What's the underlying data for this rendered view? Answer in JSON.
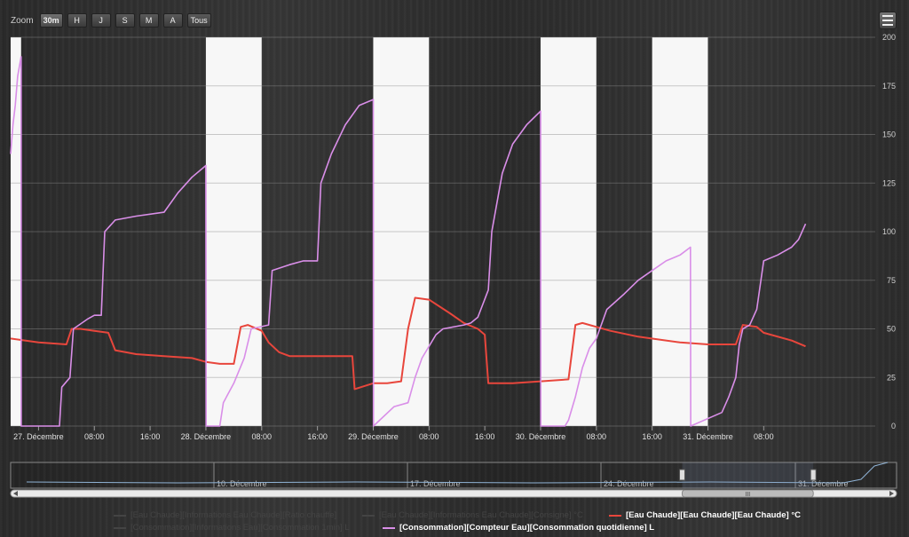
{
  "zoom": {
    "label": "Zoom",
    "buttons": [
      "30m",
      "H",
      "J",
      "S",
      "M",
      "A",
      "Tous"
    ],
    "active": "30m"
  },
  "menu_icon": "hamburger-menu-icon",
  "chart_data": {
    "type": "line",
    "title": "",
    "xlabel": "",
    "ylabel": "",
    "x_axis": {
      "type": "datetime",
      "range": [
        "2023-12-26T20:00",
        "2024-01-01T00:00"
      ],
      "ticks": [
        {
          "x": "2023-12-27T00:00",
          "label": "27. Décembre"
        },
        {
          "x": "2023-12-27T08:00",
          "label": "08:00"
        },
        {
          "x": "2023-12-27T16:00",
          "label": "16:00"
        },
        {
          "x": "2023-12-28T00:00",
          "label": "28. Décembre"
        },
        {
          "x": "2023-12-28T08:00",
          "label": "08:00"
        },
        {
          "x": "2023-12-28T16:00",
          "label": "16:00"
        },
        {
          "x": "2023-12-29T00:00",
          "label": "29. Décembre"
        },
        {
          "x": "2023-12-29T08:00",
          "label": "08:00"
        },
        {
          "x": "2023-12-29T16:00",
          "label": "16:00"
        },
        {
          "x": "2023-12-30T00:00",
          "label": "30. Décembre"
        },
        {
          "x": "2023-12-30T08:00",
          "label": "08:00"
        },
        {
          "x": "2023-12-30T16:00",
          "label": "16:00"
        },
        {
          "x": "2023-12-31T00:00",
          "label": "31. Décembre"
        },
        {
          "x": "2023-12-31T08:00",
          "label": "08:00"
        }
      ]
    },
    "y_axis": {
      "range": [
        0,
        200
      ],
      "ticks": [
        0,
        25,
        50,
        75,
        100,
        125,
        150,
        175,
        200
      ],
      "position": "right",
      "grid": true
    },
    "bands": [
      {
        "from": "2023-12-26T20:00",
        "to": "2023-12-26T21:30",
        "color": "#f7f7f7"
      },
      {
        "from": "2023-12-28T00:00",
        "to": "2023-12-28T08:00",
        "color": "#f7f7f7"
      },
      {
        "from": "2023-12-29T00:00",
        "to": "2023-12-29T08:00",
        "color": "#f7f7f7"
      },
      {
        "from": "2023-12-30T00:00",
        "to": "2023-12-30T08:00",
        "color": "#f7f7f7"
      },
      {
        "from": "2023-12-30T16:00",
        "to": "2023-12-31T00:00",
        "color": "#f7f7f7"
      }
    ],
    "series": [
      {
        "name": "[Eau Chaude][Eau Chaude][Eau Chaude] °C",
        "color": "#e8463c",
        "points": [
          [
            "2023-12-26T20:00",
            45
          ],
          [
            "2023-12-27T00:00",
            43
          ],
          [
            "2023-12-27T04:00",
            42
          ],
          [
            "2023-12-27T04:45",
            50
          ],
          [
            "2023-12-27T06:00",
            50
          ],
          [
            "2023-12-27T08:00",
            49
          ],
          [
            "2023-12-27T10:00",
            48
          ],
          [
            "2023-12-27T11:00",
            39
          ],
          [
            "2023-12-27T14:00",
            37
          ],
          [
            "2023-12-27T18:00",
            36
          ],
          [
            "2023-12-27T22:00",
            35
          ],
          [
            "2023-12-28T00:00",
            33
          ],
          [
            "2023-12-28T02:00",
            32
          ],
          [
            "2023-12-28T04:00",
            32
          ],
          [
            "2023-12-28T05:00",
            51
          ],
          [
            "2023-12-28T06:00",
            52
          ],
          [
            "2023-12-28T08:00",
            49
          ],
          [
            "2023-12-28T09:00",
            43
          ],
          [
            "2023-12-28T10:30",
            38
          ],
          [
            "2023-12-28T12:00",
            36
          ],
          [
            "2023-12-28T16:00",
            36
          ],
          [
            "2023-12-28T21:00",
            36
          ],
          [
            "2023-12-28T21:20",
            19
          ],
          [
            "2023-12-29T00:00",
            22
          ],
          [
            "2023-12-29T02:00",
            22
          ],
          [
            "2023-12-29T04:00",
            23
          ],
          [
            "2023-12-29T05:00",
            50
          ],
          [
            "2023-12-29T06:00",
            66
          ],
          [
            "2023-12-29T08:00",
            65
          ],
          [
            "2023-12-29T11:00",
            58
          ],
          [
            "2023-12-29T13:00",
            53
          ],
          [
            "2023-12-29T15:00",
            50
          ],
          [
            "2023-12-29T16:00",
            47
          ],
          [
            "2023-12-29T16:30",
            22
          ],
          [
            "2023-12-29T20:00",
            22
          ],
          [
            "2023-12-30T00:00",
            23
          ],
          [
            "2023-12-30T04:00",
            24
          ],
          [
            "2023-12-30T05:00",
            52
          ],
          [
            "2023-12-30T06:00",
            53
          ],
          [
            "2023-12-30T10:00",
            49
          ],
          [
            "2023-12-30T14:00",
            46
          ],
          [
            "2023-12-30T20:00",
            43
          ],
          [
            "2023-12-31T00:00",
            42
          ],
          [
            "2023-12-31T04:00",
            42
          ],
          [
            "2023-12-31T05:00",
            52
          ],
          [
            "2023-12-31T07:00",
            51
          ],
          [
            "2023-12-31T08:00",
            48
          ],
          [
            "2023-12-31T12:00",
            44
          ],
          [
            "2023-12-31T14:00",
            41
          ]
        ]
      },
      {
        "name": "[Consommation][Compteur Eau][Consommation quotidienne] L",
        "color": "#d98ee8",
        "color_in_band": "#f3a2f7",
        "points": [
          [
            "2023-12-26T20:00",
            140
          ],
          [
            "2023-12-26T20:20",
            155
          ],
          [
            "2023-12-26T20:40",
            165
          ],
          [
            "2023-12-26T21:00",
            180
          ],
          [
            "2023-12-26T21:30",
            190
          ],
          [
            "2023-12-26T21:31",
            0
          ],
          [
            "2023-12-27T03:00",
            0
          ],
          [
            "2023-12-27T03:20",
            20
          ],
          [
            "2023-12-27T04:30",
            25
          ],
          [
            "2023-12-27T05:00",
            50
          ],
          [
            "2023-12-27T07:00",
            55
          ],
          [
            "2023-12-27T08:00",
            57
          ],
          [
            "2023-12-27T09:00",
            57
          ],
          [
            "2023-12-27T09:30",
            100
          ],
          [
            "2023-12-27T11:00",
            106
          ],
          [
            "2023-12-27T14:00",
            108
          ],
          [
            "2023-12-27T18:00",
            110
          ],
          [
            "2023-12-27T20:00",
            120
          ],
          [
            "2023-12-27T22:00",
            128
          ],
          [
            "2023-12-28T00:00",
            134
          ],
          [
            "2023-12-28T00:02",
            0
          ],
          [
            "2023-12-28T02:00",
            0
          ],
          [
            "2023-12-28T02:30",
            12
          ],
          [
            "2023-12-28T04:00",
            22
          ],
          [
            "2023-12-28T05:30",
            35
          ],
          [
            "2023-12-28T06:30",
            50
          ],
          [
            "2023-12-28T09:00",
            52
          ],
          [
            "2023-12-28T09:30",
            80
          ],
          [
            "2023-12-28T12:00",
            83
          ],
          [
            "2023-12-28T14:00",
            85
          ],
          [
            "2023-12-28T16:00",
            85
          ],
          [
            "2023-12-28T16:30",
            125
          ],
          [
            "2023-12-28T18:00",
            140
          ],
          [
            "2023-12-28T20:00",
            155
          ],
          [
            "2023-12-28T22:00",
            165
          ],
          [
            "2023-12-29T00:00",
            168
          ],
          [
            "2023-12-29T00:02",
            0
          ],
          [
            "2023-12-29T03:00",
            10
          ],
          [
            "2023-12-29T05:00",
            12
          ],
          [
            "2023-12-29T06:00",
            25
          ],
          [
            "2023-12-29T07:00",
            35
          ],
          [
            "2023-12-29T09:00",
            47
          ],
          [
            "2023-12-29T10:00",
            50
          ],
          [
            "2023-12-29T13:00",
            52
          ],
          [
            "2023-12-29T14:00",
            53
          ],
          [
            "2023-12-29T15:00",
            56
          ],
          [
            "2023-12-29T16:30",
            70
          ],
          [
            "2023-12-29T17:00",
            100
          ],
          [
            "2023-12-29T18:30",
            130
          ],
          [
            "2023-12-29T20:00",
            145
          ],
          [
            "2023-12-29T22:00",
            155
          ],
          [
            "2023-12-30T00:00",
            162
          ],
          [
            "2023-12-30T00:02",
            0
          ],
          [
            "2023-12-30T03:00",
            0
          ],
          [
            "2023-12-30T03:30",
            0
          ],
          [
            "2023-12-30T04:00",
            3
          ],
          [
            "2023-12-30T05:00",
            15
          ],
          [
            "2023-12-30T06:00",
            30
          ],
          [
            "2023-12-30T07:00",
            40
          ],
          [
            "2023-12-30T08:00",
            45
          ],
          [
            "2023-12-30T09:30",
            60
          ],
          [
            "2023-12-30T12:00",
            68
          ],
          [
            "2023-12-30T14:00",
            75
          ],
          [
            "2023-12-30T16:00",
            80
          ],
          [
            "2023-12-30T18:00",
            85
          ],
          [
            "2023-12-30T20:00",
            88
          ],
          [
            "2023-12-30T21:30",
            92
          ],
          [
            "2023-12-30T21:32",
            0
          ],
          [
            "2023-12-31T02:00",
            7
          ],
          [
            "2023-12-31T03:00",
            15
          ],
          [
            "2023-12-31T04:00",
            25
          ],
          [
            "2023-12-31T04:30",
            42
          ],
          [
            "2023-12-31T05:00",
            50
          ],
          [
            "2023-12-31T06:00",
            52
          ],
          [
            "2023-12-31T07:00",
            60
          ],
          [
            "2023-12-31T08:00",
            85
          ],
          [
            "2023-12-31T10:00",
            88
          ],
          [
            "2023-12-31T12:00",
            92
          ],
          [
            "2023-12-31T13:00",
            96
          ],
          [
            "2023-12-31T14:00",
            104
          ]
        ]
      }
    ],
    "legend": {
      "placement": "bottom",
      "items": [
        {
          "name": "[Eau Chaude][Informations Eau Chaude][Ratio chauffe]",
          "visible": false,
          "color": "#444444"
        },
        {
          "name": "[Eau Chaude][Informations Eau Chaude][Consigne] °C",
          "visible": false,
          "color": "#444444"
        },
        {
          "name": "[Eau Chaude][Eau Chaude][Eau Chaude] °C",
          "visible": true,
          "color": "#e8463c"
        },
        {
          "name": "[Consommation][Informations Eau][Consommation 1min] L",
          "visible": false,
          "color": "#444444"
        },
        {
          "name": "[Consommation][Compteur Eau][Consommation quotidienne] L",
          "visible": true,
          "color": "#d98ee8"
        }
      ]
    },
    "navigator": {
      "ticks": [
        {
          "label": "10. Décembre"
        },
        {
          "label": "17. Décembre"
        },
        {
          "label": "24. Décembre"
        },
        {
          "label": "31. Décembre"
        }
      ],
      "scrollbar_grip": "III",
      "selection_fraction": [
        0.758,
        0.906
      ]
    }
  }
}
